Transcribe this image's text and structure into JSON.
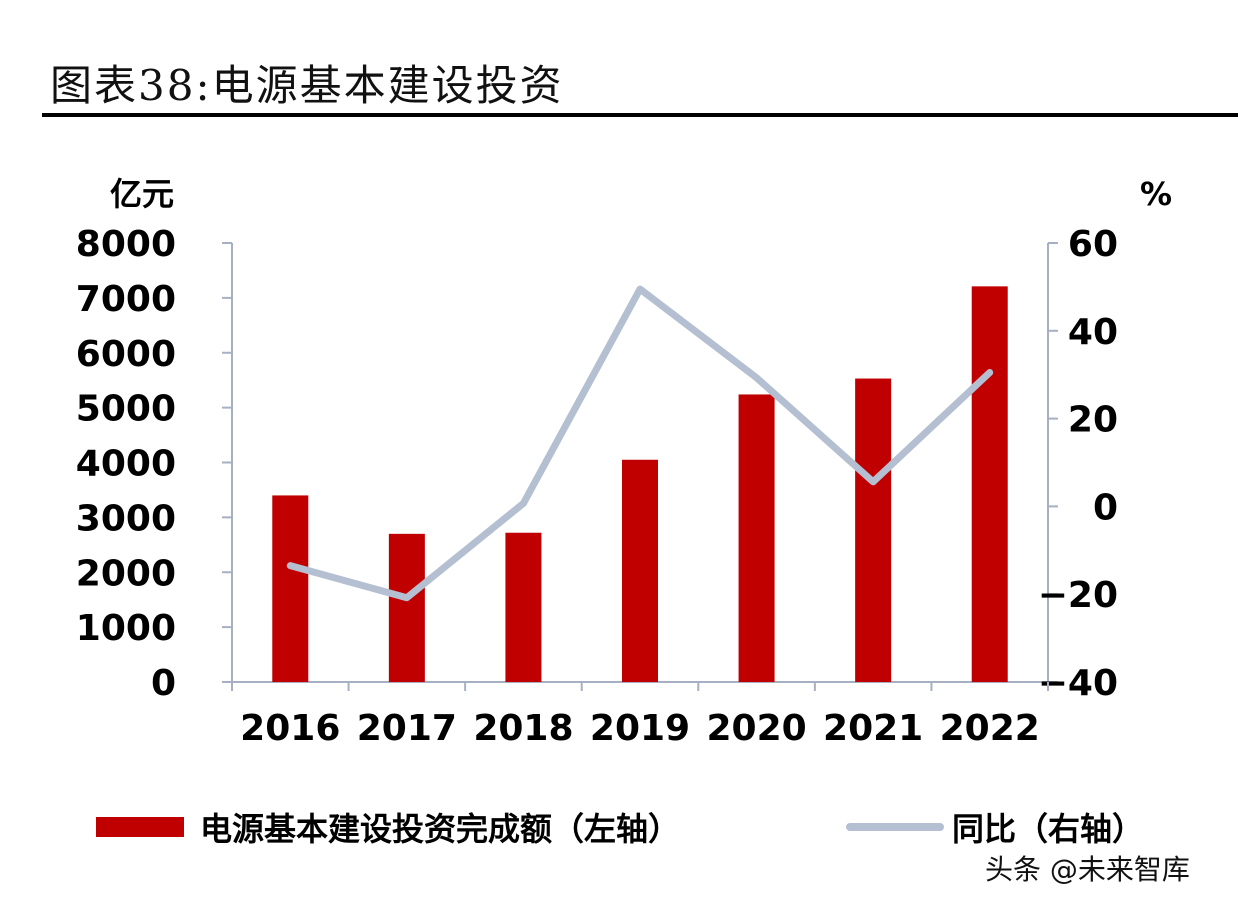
{
  "figure": {
    "title": "图表38:电源基本建设投资"
  },
  "chart_data": {
    "type": "bar",
    "categories": [
      "2016",
      "2017",
      "2018",
      "2019",
      "2020",
      "2021",
      "2022"
    ],
    "series": [
      {
        "name": "电源基本建设投资完成额（左轴）",
        "type": "bar",
        "axis": "left",
        "values": [
          3400,
          2700,
          2720,
          4050,
          5240,
          5530,
          7210
        ],
        "color": "#c00000"
      },
      {
        "name": "同比（右轴）",
        "type": "line",
        "axis": "right",
        "values": [
          -13.5,
          -20.8,
          0.7,
          49.5,
          29.3,
          5.6,
          30.5
        ],
        "color": "#b4bfd1"
      }
    ],
    "y_left": {
      "label": "亿元",
      "range": [
        0,
        8000
      ],
      "ticks": [
        "0",
        "1000",
        "2000",
        "3000",
        "4000",
        "5000",
        "6000",
        "7000",
        "8000"
      ]
    },
    "y_right": {
      "label": "%",
      "range": [
        -40,
        60
      ],
      "ticks": [
        "−40",
        "−20",
        "0",
        "20",
        "40",
        "60"
      ]
    },
    "grid": false,
    "legend": "bottom"
  },
  "watermark": "头条 @未来智库"
}
